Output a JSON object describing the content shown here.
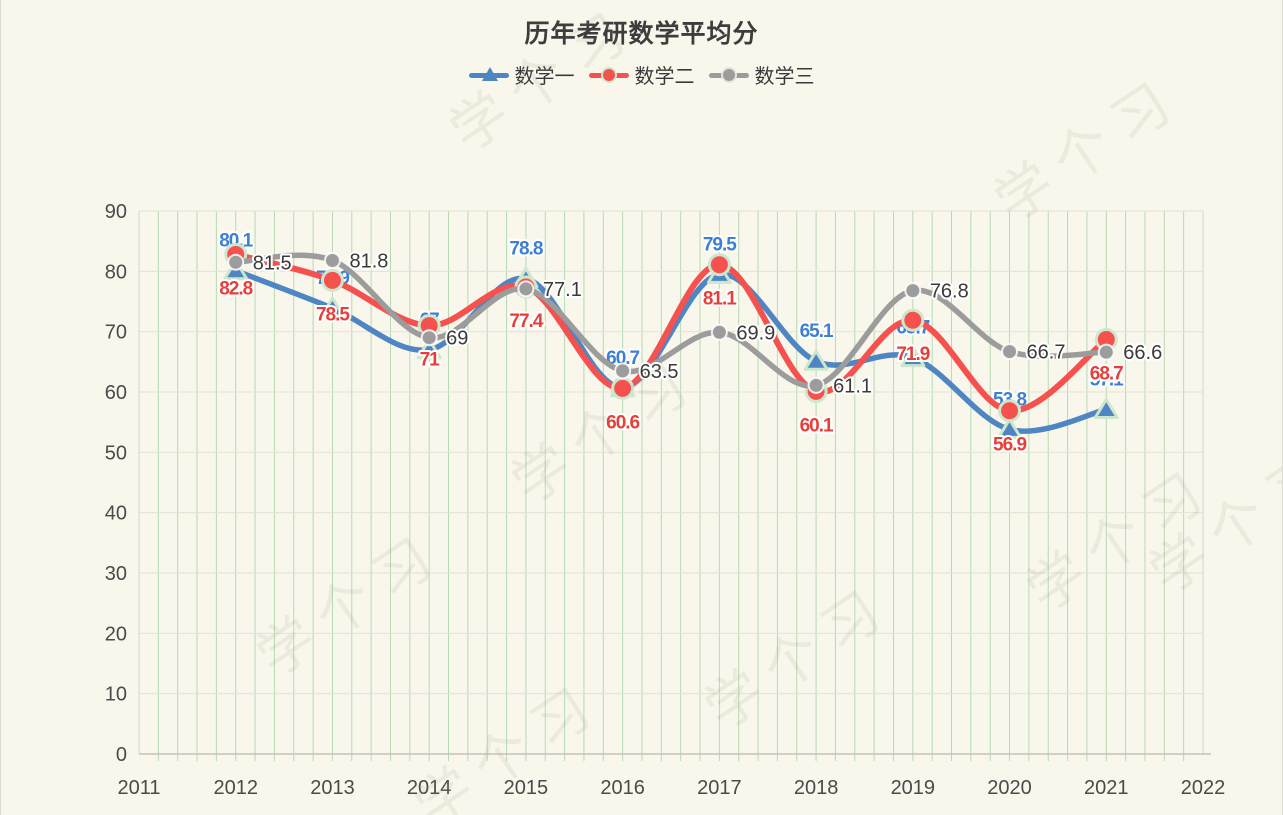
{
  "title": "历年考研数学平均分",
  "watermark_text": "学个习",
  "chart_data": {
    "type": "line",
    "x": [
      2012,
      2013,
      2014,
      2015,
      2016,
      2017,
      2018,
      2019,
      2020,
      2021
    ],
    "x_axis_ticks": [
      2011,
      2012,
      2013,
      2014,
      2015,
      2016,
      2017,
      2018,
      2019,
      2020,
      2021,
      2022
    ],
    "y_ticks": [
      0,
      10,
      20,
      30,
      40,
      50,
      60,
      70,
      80,
      90
    ],
    "ylim": [
      0,
      90
    ],
    "grid": true,
    "legend_position": "top",
    "smooth": true,
    "series": [
      {
        "name": "数学一",
        "marker": "triangle",
        "line_color": "#4e86c4",
        "label_color": "#3d7fd2",
        "values": [
          80.1,
          73.9,
          67,
          78.8,
          60.7,
          79.5,
          65.1,
          65.7,
          53.8,
          57.1
        ]
      },
      {
        "name": "数学二",
        "marker": "circle",
        "line_color": "#f5514f",
        "label_color": "#e63f3a",
        "values": [
          82.8,
          78.5,
          71,
          77.4,
          60.6,
          81.1,
          60.1,
          71.9,
          56.9,
          68.7
        ]
      },
      {
        "name": "数学三",
        "marker": "circle-gray",
        "line_color": "#9c9c9c",
        "label_color": "#3a3a3a",
        "values": [
          81.5,
          81.8,
          69,
          77.1,
          63.5,
          69.9,
          61.1,
          76.8,
          66.7,
          66.6
        ]
      }
    ]
  }
}
